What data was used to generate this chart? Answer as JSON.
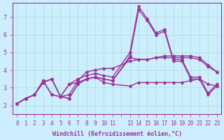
{
  "background_color": "#cceeff",
  "grid_color": "#aaddcc",
  "line_color": "#993399",
  "marker_color": "#993399",
  "xlabel": "Windchill (Refroidissement éolien,°C)",
  "xlabel_color": "#993399",
  "tick_color": "#993399",
  "ylim": [
    1.5,
    7.8
  ],
  "xlim": [
    -0.5,
    23.5
  ],
  "yticks": [
    2,
    3,
    4,
    5,
    6,
    7
  ],
  "xtick_labels": [
    "0",
    "1",
    "2",
    "3",
    "4",
    "5",
    "6",
    "7",
    "8",
    "9",
    "10",
    "11",
    "",
    "13",
    "14",
    "15",
    "16",
    "17",
    "18",
    "19",
    "20",
    "21",
    "22",
    "23"
  ],
  "lines": [
    [
      0,
      1,
      2,
      3,
      4,
      5,
      6,
      7,
      8,
      9,
      10,
      11,
      13,
      14,
      15,
      16,
      17,
      18,
      19,
      20,
      21,
      22,
      23
    ],
    [
      2.1,
      2.4,
      2.6,
      3.3,
      3.5,
      2.5,
      2.4,
      3.2,
      3.5,
      3.6,
      3.3,
      3.2,
      3.1,
      3.3,
      3.3,
      3.3,
      3.3,
      3.3,
      3.3,
      3.4,
      3.5,
      3.2,
      3.1
    ]
  ],
  "lines2": [
    [
      0,
      1,
      2,
      3,
      4,
      5,
      6,
      7,
      8,
      9,
      10,
      11,
      13,
      14,
      15,
      16,
      17,
      18,
      19,
      20,
      21,
      22,
      23
    ],
    [
      2.1,
      2.4,
      2.6,
      3.4,
      2.6,
      2.5,
      3.2,
      3.3,
      3.5,
      3.6,
      3.5,
      3.4,
      4.8,
      7.4,
      6.8,
      6.0,
      6.2,
      4.5,
      4.5,
      3.5,
      3.5,
      2.6,
      3.1
    ]
  ],
  "lines3": [
    [
      0,
      1,
      2,
      3,
      4,
      5,
      6,
      7,
      8,
      9,
      10,
      11,
      13,
      14,
      15,
      16,
      17,
      18,
      19,
      20,
      21,
      22,
      23
    ],
    [
      2.1,
      2.4,
      2.6,
      3.4,
      2.6,
      2.5,
      3.2,
      3.5,
      3.7,
      3.8,
      3.7,
      3.6,
      5.0,
      7.6,
      6.9,
      6.1,
      6.3,
      4.6,
      4.6,
      3.6,
      3.6,
      2.7,
      3.2
    ]
  ],
  "lines4": [
    [
      0,
      1,
      2,
      3,
      4,
      5,
      6,
      7,
      8,
      9,
      10,
      11,
      13,
      14,
      15,
      16,
      17,
      18,
      19,
      20,
      21,
      22,
      23
    ],
    [
      2.1,
      2.4,
      2.6,
      3.3,
      3.5,
      2.5,
      2.6,
      3.4,
      3.9,
      4.0,
      4.1,
      4.1,
      4.5,
      4.6,
      4.6,
      4.7,
      4.7,
      4.7,
      4.7,
      4.7,
      4.6,
      4.2,
      3.9
    ]
  ],
  "lines5": [
    [
      0,
      1,
      2,
      3,
      4,
      5,
      6,
      7,
      8,
      9,
      10,
      11,
      13,
      14,
      15,
      16,
      17,
      18,
      19,
      20,
      21,
      22,
      23
    ],
    [
      2.1,
      2.4,
      2.6,
      3.3,
      3.5,
      2.5,
      2.4,
      3.2,
      3.5,
      3.6,
      3.5,
      3.4,
      4.7,
      4.6,
      4.6,
      4.7,
      4.8,
      4.8,
      4.8,
      4.8,
      4.7,
      4.3,
      3.9
    ]
  ]
}
